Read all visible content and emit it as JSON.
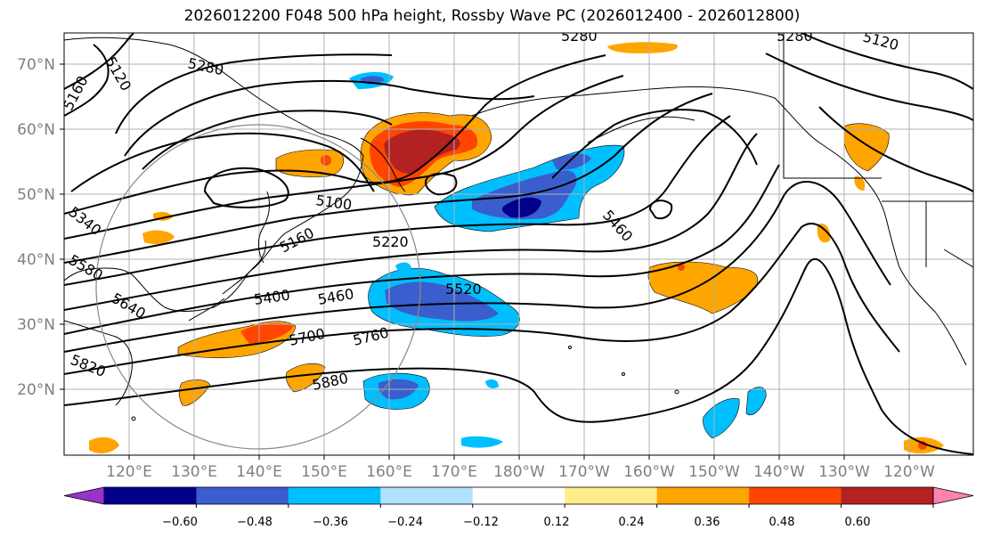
{
  "title": "2026012200 F048 500 hPa height, Rossby Wave PC (2026012400 - 2026012800)",
  "map": {
    "lat_labels": [
      "70°N",
      "60°N",
      "50°N",
      "40°N",
      "30°N",
      "20°N"
    ],
    "lon_labels": [
      "120°E",
      "130°E",
      "140°E",
      "150°E",
      "160°E",
      "170°E",
      "180°W",
      "170°W",
      "160°W",
      "150°W",
      "140°W",
      "130°W",
      "120°W"
    ],
    "contour_labels": [
      "5280",
      "5280",
      "5280",
      "5120",
      "5160",
      "5100",
      "5160",
      "5220",
      "5340",
      "5580",
      "5640",
      "5400",
      "5460",
      "5520",
      "5700",
      "5760",
      "5820",
      "5880",
      "5460",
      "5120"
    ],
    "colors": {
      "land": "#000000",
      "grid": "#b0b0b0",
      "contour": "#000000"
    }
  },
  "colorbar": {
    "ticks": [
      "−0.60",
      "−0.48",
      "−0.36",
      "−0.24",
      "−0.12",
      "0.12",
      "0.24",
      "0.36",
      "0.48",
      "0.60"
    ],
    "colors": [
      "#9932cc",
      "#00008b",
      "#3a5ecd",
      "#00bfff",
      "#b0e2ff",
      "#ffffff",
      "#ffec8b",
      "#ffa500",
      "#ff4500",
      "#b22222",
      "#ff83ae"
    ]
  }
}
